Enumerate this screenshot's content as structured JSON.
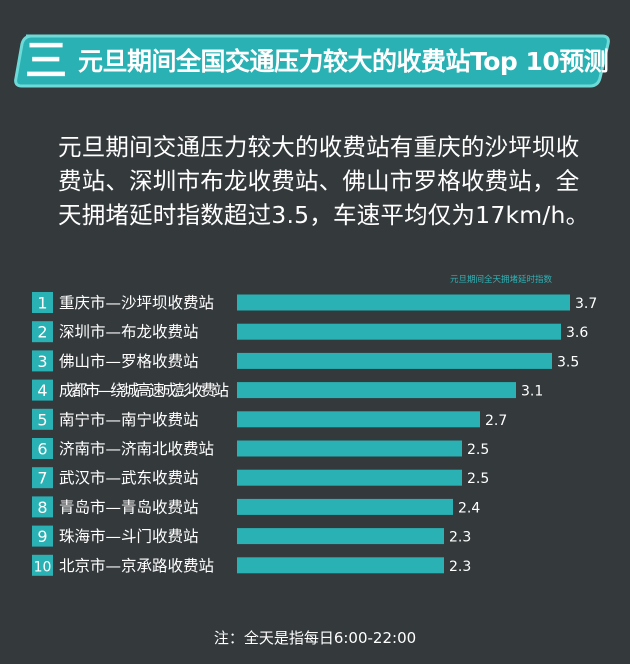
{
  "header": {
    "section_number": "三",
    "title": "元旦期间全国交通压力较大的收费站Top 10预测"
  },
  "summary": "元旦期间交通压力较大的收费站有重庆的沙坪坝收费站、深圳市布龙收费站、佛山市罗格收费站，全天拥堵延时指数超过3.5，车速平均仅为17km/h。",
  "footnote": "注：全天是指每日6:00-22:00",
  "colors": {
    "background": "#34393c",
    "accent": "#2ab1b4",
    "banner_border": "#6ddad8",
    "text": "#ffffff"
  },
  "chart_data": {
    "type": "bar",
    "orientation": "horizontal",
    "legend": "元旦期间全天拥堵延时指数",
    "ranks": [
      "1",
      "2",
      "3",
      "4",
      "5",
      "6",
      "7",
      "8",
      "9",
      "10"
    ],
    "categories": [
      "重庆市—沙坪坝收费站",
      "深圳市—布龙收费站",
      "佛山市—罗格收费站",
      "成都市—绕城高速成彭收费站",
      "南宁市—南宁收费站",
      "济南市—济南北收费站",
      "武汉市—武东收费站",
      "青岛市—青岛收费站",
      "珠海市—斗门收费站",
      "北京市—京承路收费站"
    ],
    "values": [
      3.7,
      3.6,
      3.5,
      3.1,
      2.7,
      2.5,
      2.5,
      2.4,
      2.3,
      2.3
    ],
    "value_labels": [
      "3.7",
      "3.6",
      "3.5",
      "3.1",
      "2.7",
      "2.5",
      "2.5",
      "2.4",
      "2.3",
      "2.3"
    ],
    "xlim": [
      0,
      3.7
    ],
    "grid": false
  }
}
